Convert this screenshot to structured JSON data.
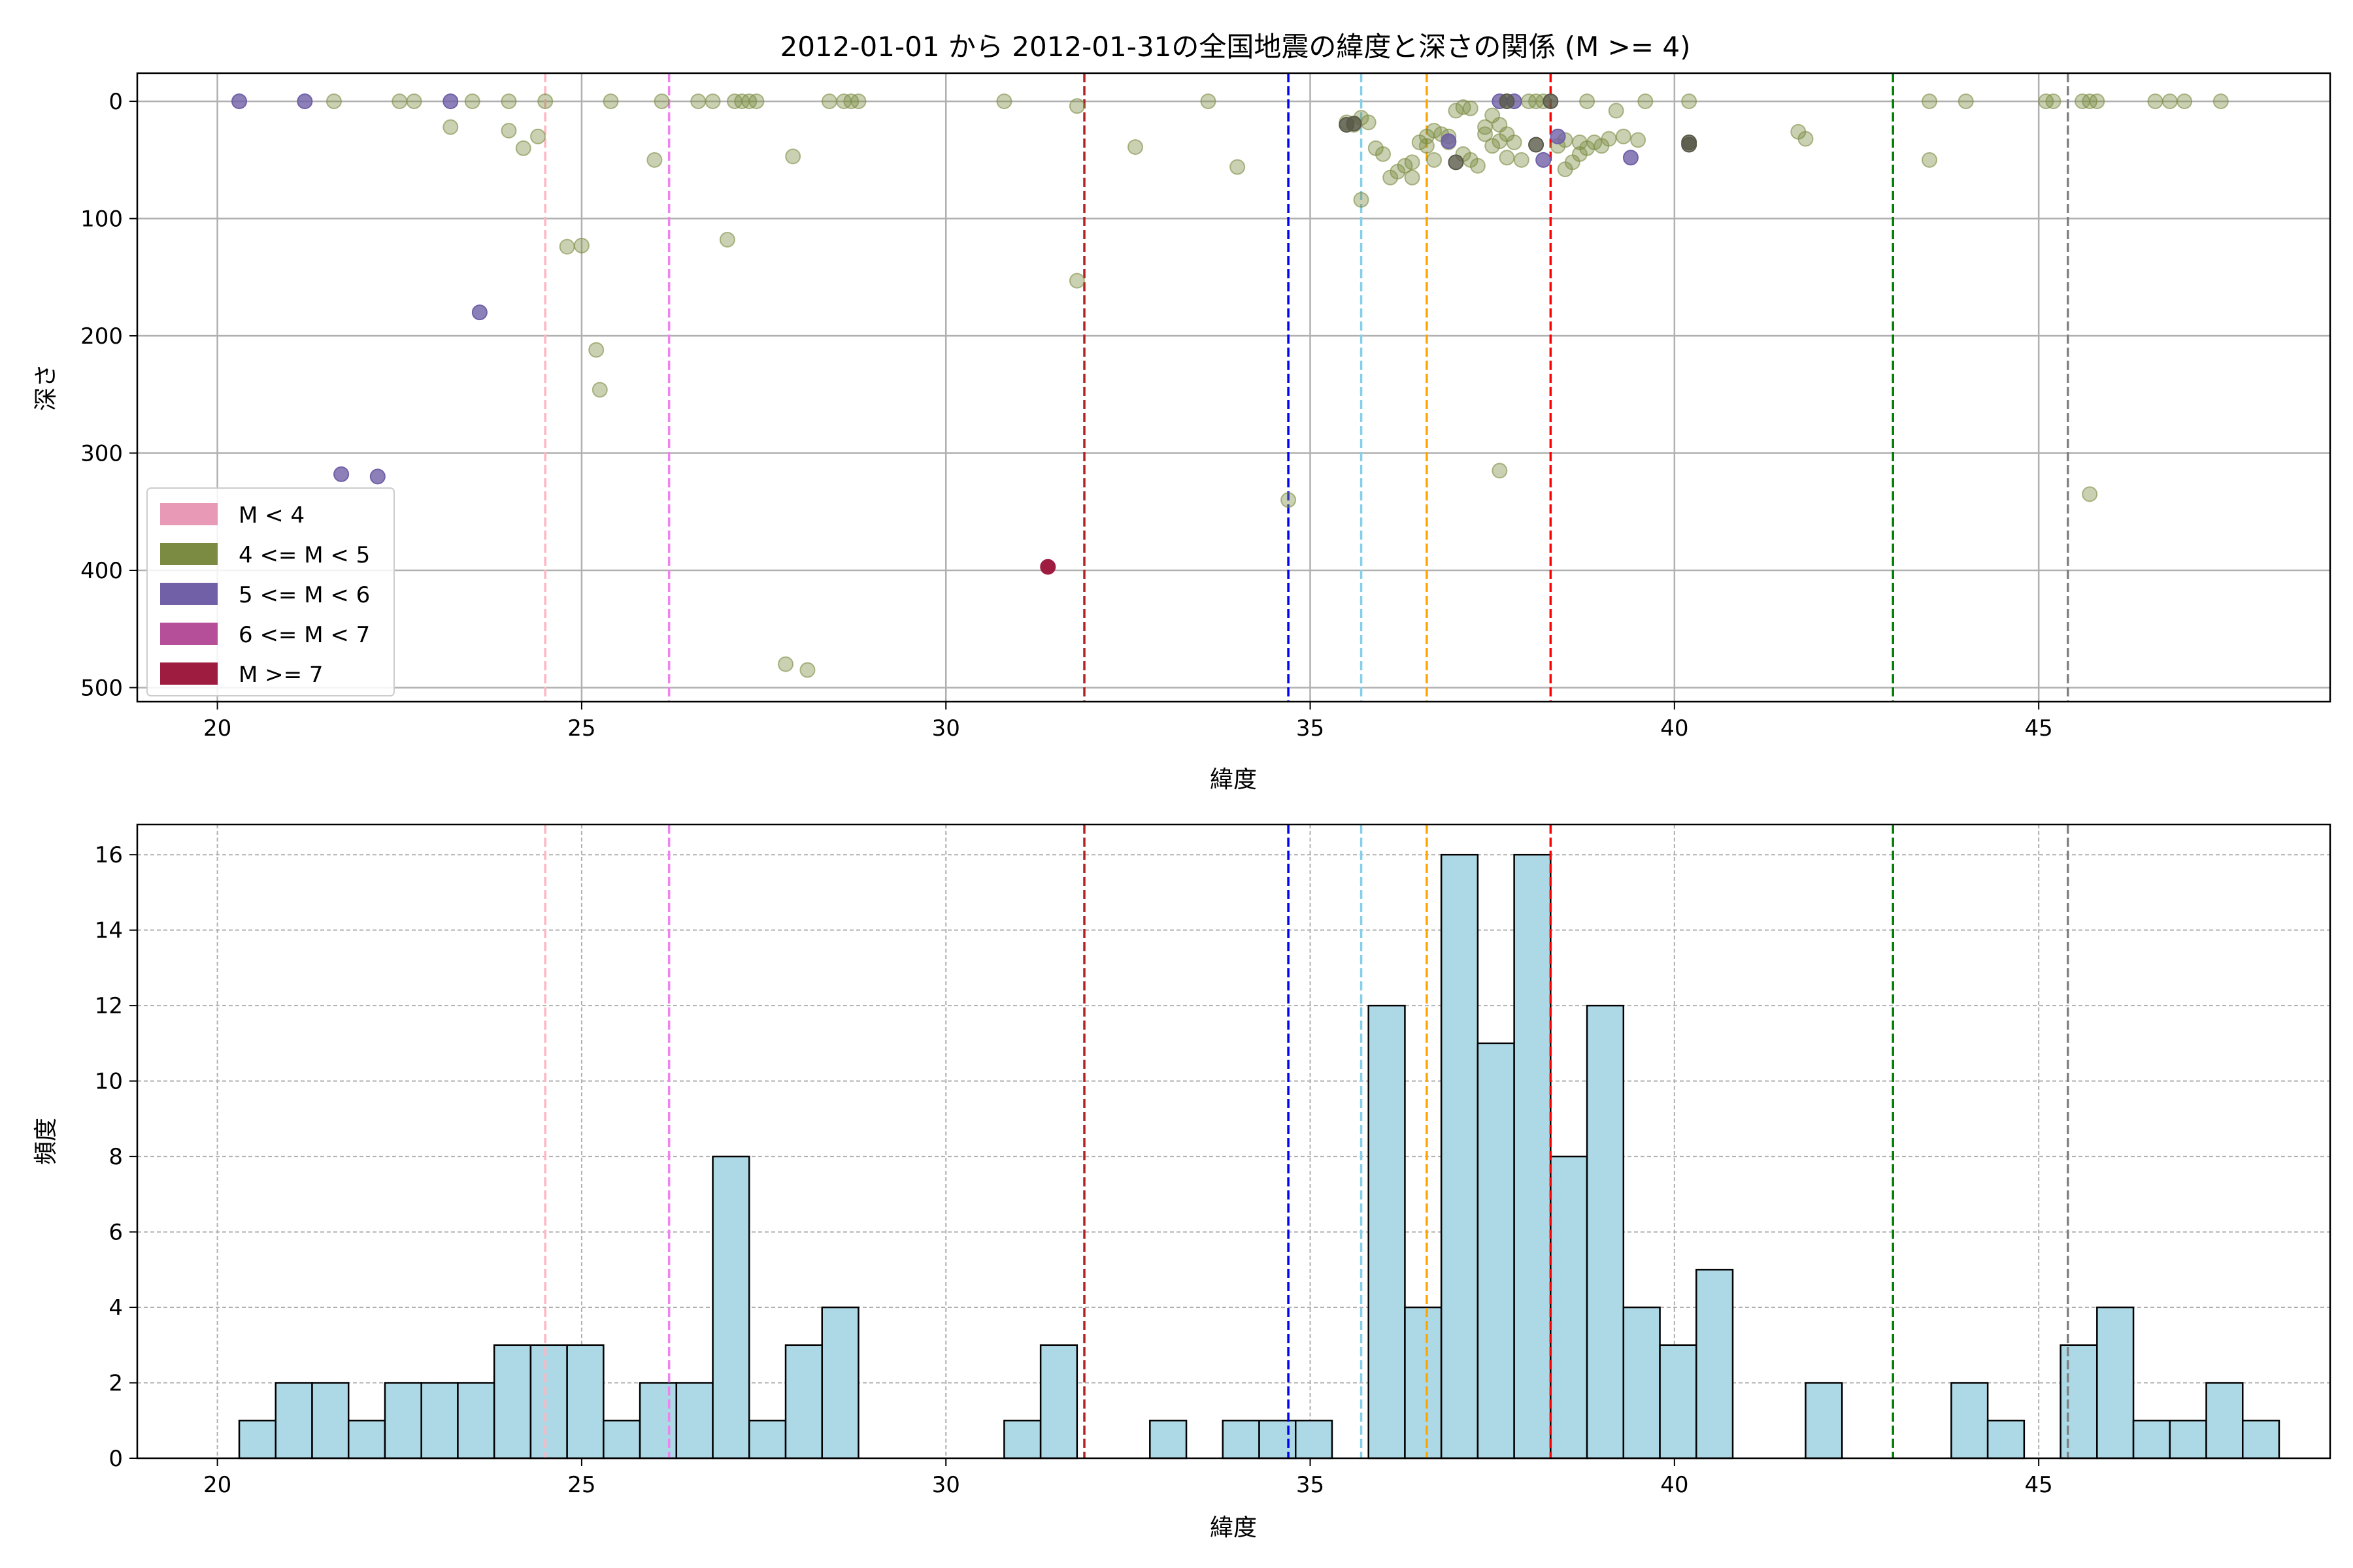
{
  "colors": {
    "hist_fill": "#add8e6",
    "grid": "#b0b0b0",
    "m_lt4": "#e799b6",
    "m_4_5": "#7b8c42",
    "m_5_6": "#7160a8",
    "m_6_7": "#b54f9a",
    "m_ge7": "#9e1c40"
  },
  "chart_data": [
    {
      "type": "scatter",
      "title": "2012-01-01 から 2012-01-31の全国地震の緯度と深さの関係 (M >= 4)",
      "xlabel": "緯度",
      "ylabel": "深さ",
      "xlim": [
        18.9,
        49.0
      ],
      "ylim": [
        512,
        -24
      ],
      "y_inverted": true,
      "grid": true,
      "legend_position": "lower-left",
      "xticks": [
        20,
        25,
        30,
        35,
        40,
        45
      ],
      "yticks": [
        0,
        100,
        200,
        300,
        400,
        500
      ],
      "legend": [
        {
          "label": "M < 4",
          "color_key": "m_lt4"
        },
        {
          "label": "4 <= M < 5",
          "color_key": "m_4_5"
        },
        {
          "label": "5 <= M < 6",
          "color_key": "m_5_6"
        },
        {
          "label": "6 <= M < 7",
          "color_key": "m_6_7"
        },
        {
          "label": "M >= 7",
          "color_key": "m_ge7"
        }
      ],
      "reference_lines": [
        {
          "x": 24.5,
          "color": "#ffb6c1"
        },
        {
          "x": 26.2,
          "color": "#ee82ee"
        },
        {
          "x": 31.9,
          "color": "#b22222"
        },
        {
          "x": 34.7,
          "color": "#0000ff"
        },
        {
          "x": 35.7,
          "color": "#87ceeb"
        },
        {
          "x": 36.6,
          "color": "#ffa500"
        },
        {
          "x": 38.3,
          "color": "#ff0000"
        },
        {
          "x": 43.0,
          "color": "#008000"
        },
        {
          "x": 45.4,
          "color": "#808080"
        }
      ],
      "series": [
        {
          "color_key": "m_4_5",
          "points": [
            [
              21.6,
              0
            ],
            [
              22.5,
              0
            ],
            [
              22.7,
              0
            ],
            [
              23.5,
              0
            ],
            [
              24.0,
              0
            ],
            [
              24.5,
              0
            ],
            [
              25.4,
              0
            ],
            [
              26.1,
              0
            ],
            [
              26.6,
              0
            ],
            [
              26.8,
              0
            ],
            [
              27.1,
              0
            ],
            [
              27.2,
              0
            ],
            [
              27.3,
              0
            ],
            [
              27.4,
              0
            ],
            [
              28.4,
              0
            ],
            [
              28.6,
              0
            ],
            [
              28.7,
              0
            ],
            [
              28.8,
              0
            ],
            [
              30.8,
              0
            ],
            [
              31.8,
              4
            ],
            [
              33.6,
              0
            ],
            [
              23.2,
              22
            ],
            [
              24.0,
              25
            ],
            [
              24.2,
              40
            ],
            [
              24.4,
              30
            ],
            [
              24.8,
              124
            ],
            [
              25.0,
              123
            ],
            [
              25.2,
              212
            ],
            [
              25.25,
              246
            ],
            [
              26.0,
              50
            ],
            [
              27.0,
              118
            ],
            [
              27.9,
              47
            ],
            [
              27.8,
              480
            ],
            [
              28.1,
              485
            ],
            [
              31.8,
              153
            ],
            [
              32.6,
              39
            ],
            [
              34.0,
              56
            ],
            [
              34.7,
              340
            ],
            [
              35.5,
              18
            ],
            [
              35.6,
              20
            ],
            [
              35.7,
              14
            ],
            [
              35.7,
              84
            ],
            [
              35.8,
              18
            ],
            [
              35.9,
              40
            ],
            [
              36.0,
              45
            ],
            [
              36.1,
              65
            ],
            [
              36.2,
              60
            ],
            [
              36.3,
              55
            ],
            [
              36.4,
              52
            ],
            [
              36.4,
              65
            ],
            [
              36.5,
              35
            ],
            [
              36.6,
              30
            ],
            [
              36.6,
              38
            ],
            [
              36.7,
              25
            ],
            [
              36.7,
              50
            ],
            [
              36.8,
              28
            ],
            [
              36.9,
              30
            ],
            [
              36.9,
              35
            ],
            [
              37.0,
              8
            ],
            [
              37.1,
              5
            ],
            [
              37.1,
              45
            ],
            [
              37.2,
              6
            ],
            [
              37.2,
              50
            ],
            [
              37.3,
              55
            ],
            [
              37.4,
              22
            ],
            [
              37.4,
              28
            ],
            [
              37.5,
              12
            ],
            [
              37.5,
              38
            ],
            [
              37.6,
              20
            ],
            [
              37.6,
              34
            ],
            [
              37.6,
              315
            ],
            [
              37.7,
              48
            ],
            [
              37.7,
              28
            ],
            [
              37.8,
              35
            ],
            [
              37.9,
              50
            ],
            [
              38.0,
              0
            ],
            [
              38.1,
              0
            ],
            [
              38.2,
              0
            ],
            [
              38.4,
              38
            ],
            [
              38.5,
              33
            ],
            [
              38.5,
              58
            ],
            [
              38.6,
              52
            ],
            [
              38.7,
              35
            ],
            [
              38.7,
              45
            ],
            [
              38.8,
              0
            ],
            [
              38.8,
              40
            ],
            [
              38.9,
              35
            ],
            [
              39.0,
              38
            ],
            [
              39.1,
              32
            ],
            [
              39.2,
              8
            ],
            [
              39.3,
              30
            ],
            [
              39.5,
              33
            ],
            [
              39.6,
              0
            ],
            [
              40.2,
              0
            ],
            [
              41.7,
              26
            ],
            [
              41.8,
              32
            ],
            [
              43.5,
              0
            ],
            [
              43.5,
              50
            ],
            [
              44.0,
              0
            ],
            [
              45.1,
              0
            ],
            [
              45.2,
              0
            ],
            [
              45.6,
              0
            ],
            [
              45.7,
              0
            ],
            [
              45.7,
              335
            ],
            [
              45.8,
              0
            ],
            [
              46.6,
              0
            ],
            [
              46.8,
              0
            ],
            [
              47.0,
              0
            ],
            [
              47.5,
              0
            ]
          ]
        },
        {
          "color_key": "m_5_6",
          "points": [
            [
              20.3,
              0
            ],
            [
              21.2,
              0
            ],
            [
              23.2,
              0
            ],
            [
              23.6,
              180
            ],
            [
              21.7,
              318
            ],
            [
              22.2,
              320
            ],
            [
              36.9,
              34
            ],
            [
              37.6,
              0
            ],
            [
              37.8,
              0
            ],
            [
              38.2,
              50
            ],
            [
              38.4,
              30
            ],
            [
              39.4,
              48
            ]
          ]
        },
        {
          "color_key": "mixed_dark",
          "points": [
            [
              35.5,
              20
            ],
            [
              35.6,
              19
            ],
            [
              37.0,
              52
            ],
            [
              37.7,
              0
            ],
            [
              38.3,
              0
            ],
            [
              38.1,
              37
            ],
            [
              40.2,
              35
            ],
            [
              40.2,
              37
            ]
          ]
        },
        {
          "color_key": "m_ge7",
          "points": [
            [
              31.4,
              397
            ]
          ]
        }
      ]
    },
    {
      "type": "bar",
      "subtype": "histogram",
      "xlabel": "緯度",
      "ylabel": "頻度",
      "xlim": [
        18.9,
        49.0
      ],
      "ylim": [
        0,
        16.8
      ],
      "grid": true,
      "xticks": [
        20,
        25,
        30,
        35,
        40,
        45
      ],
      "yticks": [
        0,
        2,
        4,
        6,
        8,
        10,
        12,
        14,
        16
      ],
      "bin_start": 20.3,
      "bin_width": 0.5,
      "values": [
        1,
        2,
        2,
        1,
        2,
        2,
        2,
        3,
        3,
        3,
        1,
        2,
        2,
        8,
        1,
        3,
        4,
        0,
        0,
        0,
        0,
        1,
        3,
        0,
        0,
        1,
        0,
        1,
        1,
        1,
        0,
        12,
        4,
        16,
        11,
        16,
        8,
        12,
        4,
        3,
        5,
        0,
        0,
        2,
        0,
        0,
        0,
        2,
        1,
        0,
        3,
        4,
        1,
        1,
        2,
        1
      ],
      "reference_lines": [
        {
          "x": 24.5,
          "color": "#ffb6c1"
        },
        {
          "x": 26.2,
          "color": "#ee82ee"
        },
        {
          "x": 31.9,
          "color": "#b22222"
        },
        {
          "x": 34.7,
          "color": "#0000ff"
        },
        {
          "x": 35.7,
          "color": "#87ceeb"
        },
        {
          "x": 36.6,
          "color": "#ffa500"
        },
        {
          "x": 38.3,
          "color": "#ff0000"
        },
        {
          "x": 43.0,
          "color": "#008000"
        },
        {
          "x": 45.4,
          "color": "#808080"
        }
      ]
    }
  ]
}
